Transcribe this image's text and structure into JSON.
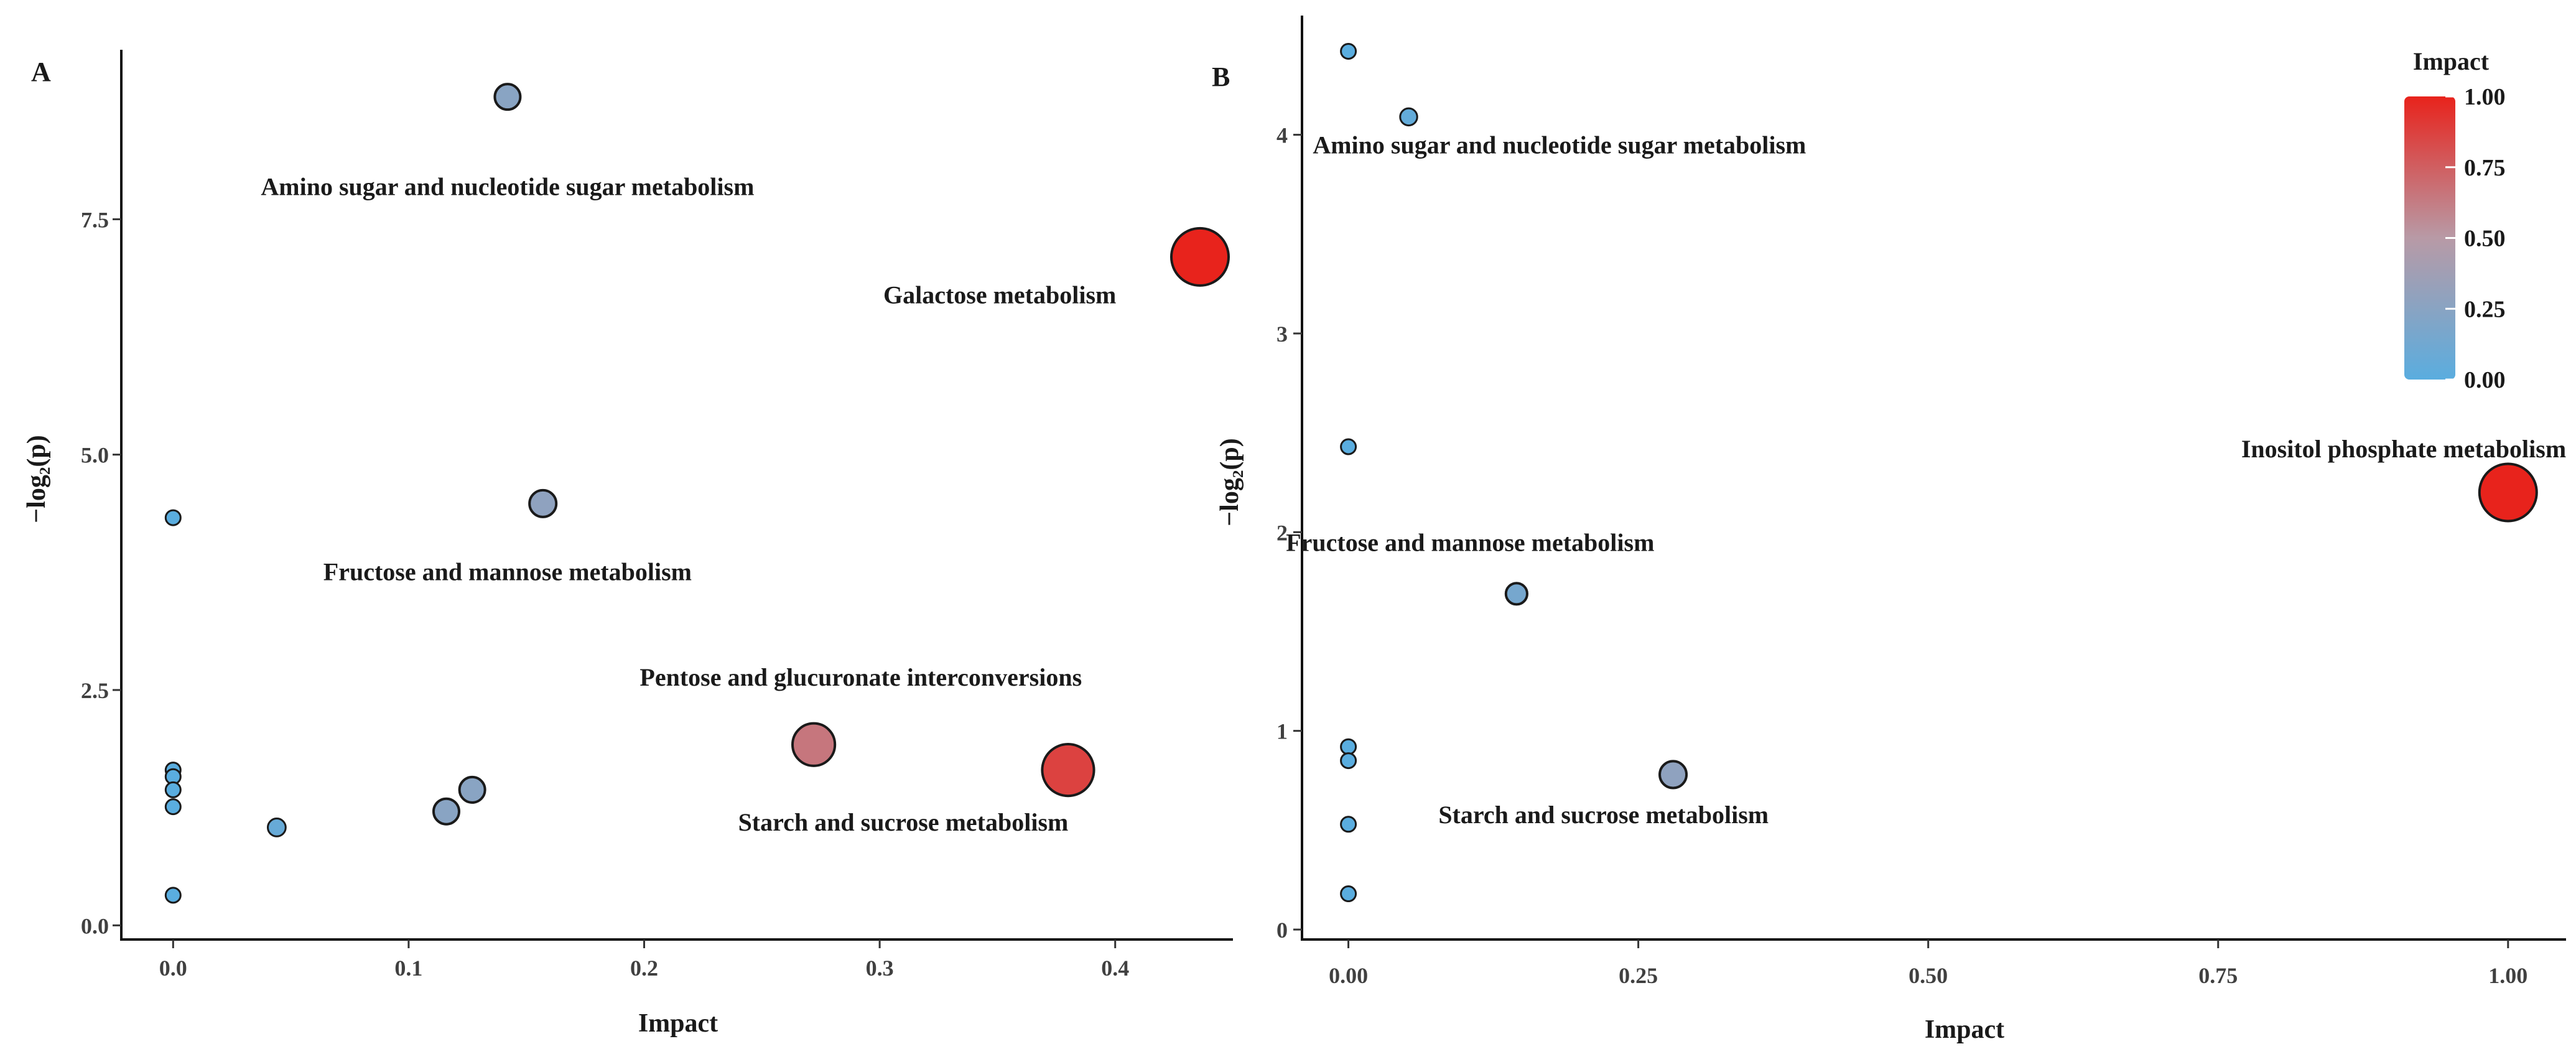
{
  "chart_data": [
    {
      "panel": "A",
      "type": "scatter",
      "title": "",
      "xlabel": "Impact",
      "ylabel": "−log₂(p)",
      "xlim": [
        -0.022,
        0.45
      ],
      "ylim": [
        -0.15,
        9.3
      ],
      "xticks": [
        0.0,
        0.1,
        0.2,
        0.3,
        0.4
      ],
      "xtick_labels": [
        "0.0",
        "0.1",
        "0.2",
        "0.3",
        "0.4"
      ],
      "yticks": [
        0.0,
        2.5,
        5.0,
        7.5
      ],
      "ytick_labels": [
        "0.0",
        "2.5",
        "5.0",
        "7.5"
      ],
      "grid": false,
      "points": [
        {
          "x": 0.142,
          "y": 8.8,
          "impact": 0.25,
          "label": "Amino sugar and nucleotide sugar metabolism",
          "label_dx": 0.0,
          "label_dy": 0.95
        },
        {
          "x": 0.436,
          "y": 7.1,
          "impact": 1.0,
          "label": "Galactose metabolism",
          "label_dx": -0.085,
          "label_dy": 0.4
        },
        {
          "x": 0.157,
          "y": 4.48,
          "impact": 0.28,
          "label": "Fructose and mannose metabolism",
          "label_dx": -0.015,
          "label_dy": 0.72
        },
        {
          "x": 0.272,
          "y": 1.92,
          "impact": 0.65,
          "label": "Pentose and glucuronate interconversions",
          "label_dx": 0.02,
          "label_dy": -0.72
        },
        {
          "x": 0.38,
          "y": 1.65,
          "impact": 0.87,
          "label": "Starch and sucrose metabolism",
          "label_dx": -0.07,
          "label_dy": 0.55
        },
        {
          "x": 0.127,
          "y": 1.44,
          "impact": 0.25,
          "label": ""
        },
        {
          "x": 0.116,
          "y": 1.21,
          "impact": 0.25,
          "label": ""
        },
        {
          "x": 0.044,
          "y": 1.04,
          "impact": 0.07,
          "label": ""
        },
        {
          "x": 0.0,
          "y": 4.33,
          "impact": 0.0,
          "label": ""
        },
        {
          "x": 0.0,
          "y": 1.65,
          "impact": 0.0,
          "label": ""
        },
        {
          "x": 0.0,
          "y": 1.58,
          "impact": 0.0,
          "label": ""
        },
        {
          "x": 0.0,
          "y": 1.44,
          "impact": 0.0,
          "label": ""
        },
        {
          "x": 0.0,
          "y": 1.26,
          "impact": 0.0,
          "label": ""
        },
        {
          "x": 0.0,
          "y": 0.32,
          "impact": 0.0,
          "label": ""
        }
      ]
    },
    {
      "panel": "B",
      "type": "scatter",
      "title": "",
      "xlabel": "Impact",
      "ylabel": "−log₂(p)",
      "xlim": [
        -0.04,
        1.05
      ],
      "ylim": [
        -0.05,
        4.6
      ],
      "xticks": [
        0.0,
        0.25,
        0.5,
        0.75,
        1.0
      ],
      "xtick_labels": [
        "0.00",
        "0.25",
        "0.50",
        "0.75",
        "1.00"
      ],
      "yticks": [
        0,
        1,
        2,
        3,
        4
      ],
      "ytick_labels": [
        "0",
        "1",
        "2",
        "3",
        "4"
      ],
      "grid": false,
      "points": [
        {
          "x": 0.0,
          "y": 4.42,
          "impact": 0.0,
          "label": ""
        },
        {
          "x": 0.052,
          "y": 4.09,
          "impact": 0.05,
          "label": "Amino sugar and nucleotide sugar metabolism",
          "label_dx": 0.13,
          "label_dy": 0.14
        },
        {
          "x": 0.0,
          "y": 2.43,
          "impact": 0.0,
          "label": ""
        },
        {
          "x": 1.0,
          "y": 2.2,
          "impact": 1.0,
          "label": "Inositol phosphate metabolism",
          "label_dx": -0.09,
          "label_dy": -0.22
        },
        {
          "x": 0.145,
          "y": 1.69,
          "impact": 0.15,
          "label": "Fructose and mannose metabolism",
          "label_dx": -0.04,
          "label_dy": -0.26
        },
        {
          "x": 0.28,
          "y": 0.78,
          "impact": 0.28,
          "label": "Starch and sucrose metabolism",
          "label_dx": -0.06,
          "label_dy": 0.2
        },
        {
          "x": 0.0,
          "y": 0.92,
          "impact": 0.0,
          "label": ""
        },
        {
          "x": 0.0,
          "y": 0.85,
          "impact": 0.0,
          "label": ""
        },
        {
          "x": 0.0,
          "y": 0.53,
          "impact": 0.0,
          "label": ""
        },
        {
          "x": 0.0,
          "y": 0.18,
          "impact": 0.0,
          "label": ""
        }
      ]
    }
  ],
  "legend": {
    "title": "Impact",
    "ticks": [
      1.0,
      0.75,
      0.5,
      0.25,
      0.0
    ],
    "tick_labels": [
      "1.00",
      "0.75",
      "0.50",
      "0.25",
      "0.00"
    ],
    "colors": {
      "low": "#5aaddf",
      "mid": "#b89aa6",
      "high": "#e8231c"
    }
  }
}
